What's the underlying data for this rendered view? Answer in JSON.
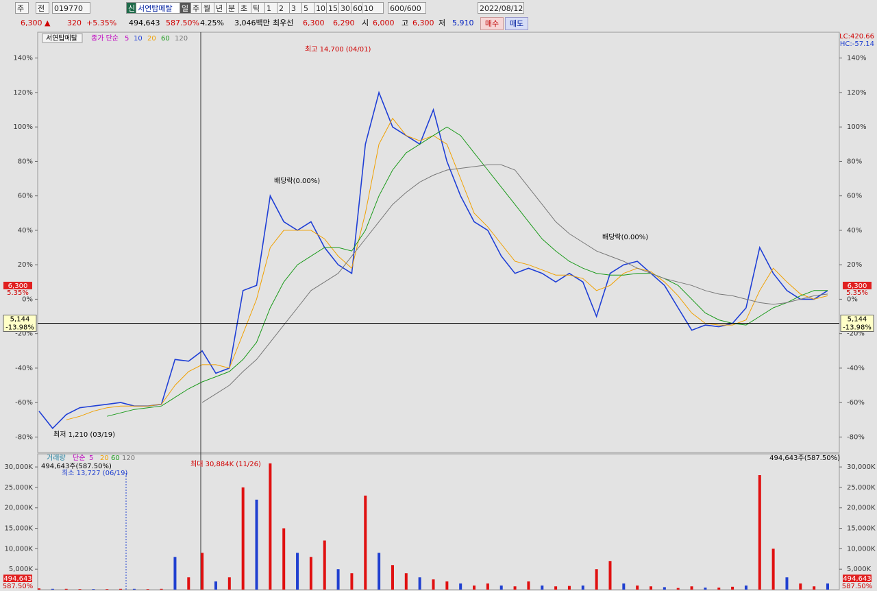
{
  "toolbar": {
    "items": [
      "주",
      "전",
      "019770",
      "신",
      "서연탑메탈",
      "일",
      "주",
      "월",
      "년",
      "분",
      "초",
      "틱",
      "1",
      "2",
      "3",
      "5",
      "10",
      "15",
      "30",
      "60",
      "10",
      "600/600",
      "2022/08/12"
    ]
  },
  "quote": {
    "items": [
      "6,300 ▲",
      "320",
      "+5.35%",
      "494,643",
      "587.50%",
      "4.25%",
      "3,046백만",
      "최우선",
      "6,300",
      "6,290",
      "시",
      "6,000",
      "고",
      "6,300",
      "저",
      "5,910"
    ],
    "buy": "매수",
    "sell": "매도"
  },
  "chart_data": [
    {
      "type": "line",
      "title": "서연탑메탈",
      "legend_prefix": "종가 단순",
      "legend_extra": "5",
      "ylim": [
        -89,
        155
      ],
      "yticks": [
        {
          "value": 140,
          "label": "140%"
        },
        {
          "value": 120,
          "label": "120%"
        },
        {
          "value": 100,
          "label": "100%"
        },
        {
          "value": 80,
          "label": "80%"
        },
        {
          "value": 60,
          "label": "60%"
        },
        {
          "value": 40,
          "label": "40%"
        },
        {
          "value": 20,
          "label": "20%"
        },
        {
          "value": 0,
          "label": "0%"
        },
        {
          "value": -20,
          "label": "-20%"
        },
        {
          "value": -40,
          "label": "-40%"
        },
        {
          "value": -60,
          "label": "-60%"
        },
        {
          "value": -80,
          "label": "-80%"
        }
      ],
      "series": [
        {
          "name": "10",
          "color": "#1f3fd6",
          "values": [
            -65,
            -75,
            -67,
            -63,
            -62,
            -61,
            -60,
            -62,
            -62,
            -61,
            -35,
            -36,
            -30,
            -43,
            -40,
            5,
            8,
            60,
            45,
            40,
            45,
            30,
            20,
            15,
            90,
            120,
            100,
            95,
            90,
            110,
            80,
            60,
            45,
            40,
            25,
            15,
            18,
            15,
            10,
            15,
            10,
            -10,
            15,
            20,
            22,
            15,
            8,
            -5,
            -18,
            -15,
            -16,
            -14,
            -5,
            30,
            15,
            5,
            0,
            0,
            5
          ]
        },
        {
          "name": "20",
          "color": "#f0a000",
          "values": [
            null,
            null,
            -70,
            -68,
            -65,
            -63,
            -62,
            -62,
            -62,
            -61,
            -50,
            -42,
            -38,
            -38,
            -40,
            -20,
            0,
            30,
            40,
            40,
            40,
            35,
            25,
            18,
            50,
            90,
            105,
            95,
            92,
            95,
            90,
            70,
            50,
            42,
            32,
            22,
            20,
            17,
            14,
            14,
            12,
            5,
            8,
            15,
            18,
            16,
            10,
            2,
            -8,
            -14,
            -15,
            -15,
            -12,
            5,
            18,
            10,
            3,
            0,
            2
          ]
        },
        {
          "name": "60",
          "color": "#1a9a1a",
          "values": [
            null,
            null,
            null,
            null,
            null,
            -68,
            -66,
            -64,
            -63,
            -62,
            -57,
            -52,
            -48,
            -45,
            -42,
            -35,
            -25,
            -5,
            10,
            20,
            25,
            30,
            30,
            28,
            40,
            60,
            75,
            85,
            90,
            95,
            100,
            95,
            85,
            75,
            65,
            55,
            45,
            35,
            28,
            22,
            18,
            15,
            14,
            14,
            15,
            15,
            12,
            8,
            0,
            -8,
            -12,
            -14,
            -15,
            -10,
            -5,
            -2,
            2,
            5,
            5
          ]
        },
        {
          "name": "120",
          "color": "#777777",
          "values": [
            null,
            null,
            null,
            null,
            null,
            null,
            null,
            null,
            null,
            null,
            null,
            null,
            -60,
            -55,
            -50,
            -42,
            -35,
            -25,
            -15,
            -5,
            5,
            10,
            15,
            25,
            35,
            45,
            55,
            62,
            68,
            72,
            75,
            76,
            77,
            78,
            78,
            75,
            65,
            55,
            45,
            38,
            33,
            28,
            25,
            22,
            18,
            15,
            12,
            10,
            8,
            5,
            3,
            2,
            0,
            -2,
            -3,
            -2,
            0,
            2,
            3
          ]
        }
      ],
      "crosshair": {
        "value": -13.98,
        "label": "-13.98%",
        "price": "5,144"
      },
      "last": {
        "value": 5.35,
        "label": "5.35%",
        "price": "6,300"
      },
      "annotations": {
        "high": "최고 14,700 (04/01)",
        "low": "최저 1,210 (03/19)",
        "div1": "배당락(0.00%)",
        "div2": "배당락(0.00%)",
        "lc": "LC:420.66",
        "hc": "HC:-57.14"
      }
    },
    {
      "type": "bar",
      "title": "거래량",
      "legend_prefix": "단순",
      "legend": [
        "5",
        "20",
        "60",
        "120"
      ],
      "color": "#e01010",
      "ylim": [
        0,
        33200
      ],
      "yticks": [
        {
          "value": 30000,
          "label": "30,000K"
        },
        {
          "value": 25000,
          "label": "25,000K"
        },
        {
          "value": 20000,
          "label": "20,000K"
        },
        {
          "value": 15000,
          "label": "15,000K"
        },
        {
          "value": 10000,
          "label": "10,000K"
        },
        {
          "value": 5000,
          "label": "5,000K"
        }
      ],
      "values": [
        300,
        200,
        200,
        150,
        150,
        150,
        200,
        200,
        150,
        200,
        8000,
        3000,
        9000,
        2000,
        3000,
        25000,
        22000,
        30884,
        15000,
        9000,
        8000,
        12000,
        5000,
        4000,
        23000,
        9000,
        6000,
        4000,
        3000,
        2500,
        2000,
        1500,
        1000,
        1500,
        1000,
        800,
        2000,
        1000,
        800,
        900,
        1000,
        5000,
        7000,
        1500,
        1000,
        800,
        600,
        400,
        800,
        500,
        500,
        700,
        1000,
        28000,
        10000,
        3000,
        1500,
        800,
        1500
      ],
      "annotations": {
        "max": "최대 30,884K (11/26)",
        "min": "최소 13,727 (06/19)",
        "cur": "494,643주(587.50%)",
        "cur_right": "494,643주(587.50%)",
        "last_vol": "494,643",
        "last_pct": "587.50%"
      }
    }
  ]
}
